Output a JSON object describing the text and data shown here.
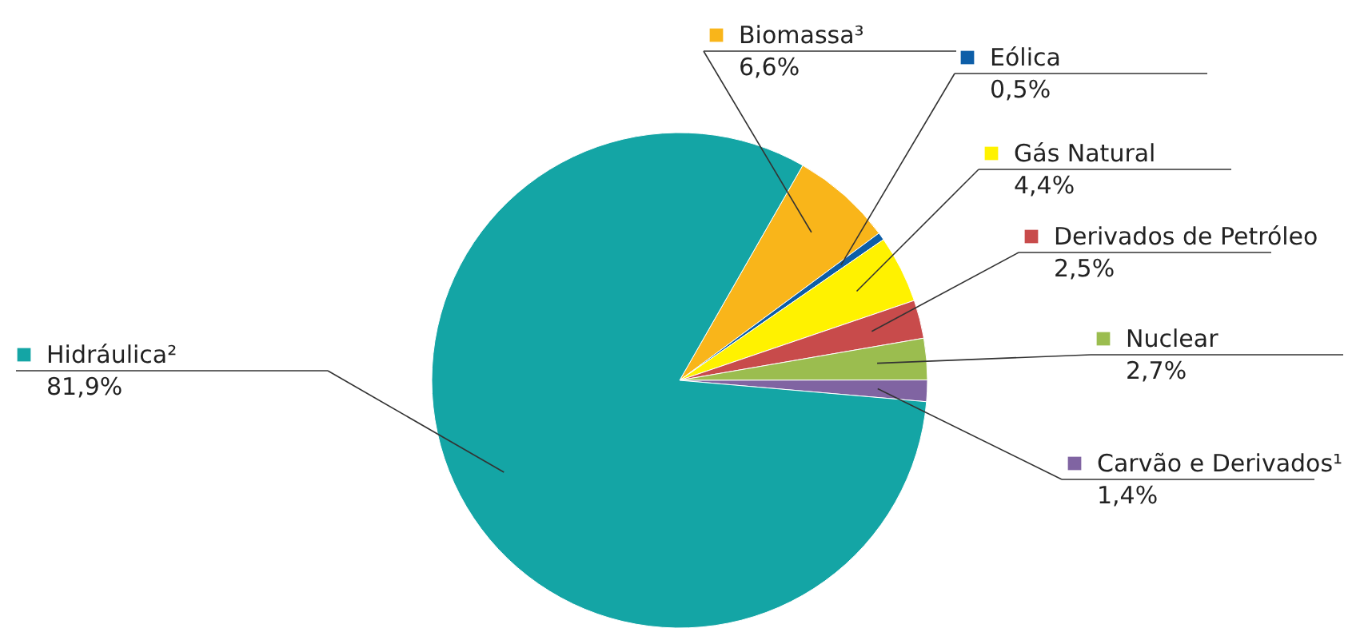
{
  "chart_data": {
    "type": "pie",
    "categories": [
      "Biomassa³",
      "Eólica",
      "Gás Natural",
      "Derivados de Petróleo",
      "Nuclear",
      "Carvão e Derivados¹",
      "Hidráulica²"
    ],
    "values": [
      6.6,
      0.5,
      4.4,
      2.5,
      2.7,
      1.4,
      81.9
    ],
    "colors": [
      "#f9b51a",
      "#0d5ea8",
      "#fff200",
      "#c84b4b",
      "#9bbd4f",
      "#8064a2",
      "#14a5a5"
    ],
    "value_labels": [
      "6,6%",
      "0,5%",
      "4,4%",
      "2,5%",
      "2,7%",
      "1,4%",
      "81,9%"
    ],
    "legend": "right"
  }
}
